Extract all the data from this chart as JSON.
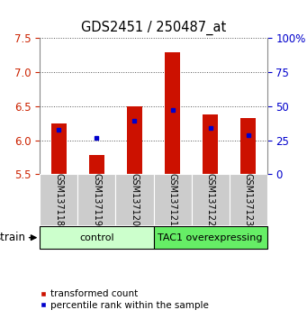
{
  "title": "GDS2451 / 250487_at",
  "samples": [
    "GSM137118",
    "GSM137119",
    "GSM137120",
    "GSM137121",
    "GSM137122",
    "GSM137123"
  ],
  "red_values": [
    6.25,
    5.78,
    6.5,
    7.3,
    6.38,
    6.32
  ],
  "blue_values": [
    6.15,
    6.03,
    6.28,
    6.45,
    6.18,
    6.08
  ],
  "ymin": 5.5,
  "ymax": 7.5,
  "yticks": [
    5.5,
    6.0,
    6.5,
    7.0,
    7.5
  ],
  "right_yticks": [
    0,
    25,
    50,
    75,
    100
  ],
  "right_yticklabels": [
    "0",
    "25",
    "50",
    "75",
    "100%"
  ],
  "groups": [
    {
      "label": "control",
      "indices": [
        0,
        1,
        2
      ],
      "color": "#ccffcc"
    },
    {
      "label": "TAC1 overexpressing",
      "indices": [
        3,
        4,
        5
      ],
      "color": "#66ee66"
    }
  ],
  "bar_color": "#cc1100",
  "blue_color": "#0000cc",
  "bar_bottom": 5.5,
  "legend_red": "transformed count",
  "legend_blue": "percentile rank within the sample",
  "left_tick_color": "#cc2200",
  "right_tick_color": "#0000cc",
  "sample_box_color": "#cccccc",
  "bar_width": 0.4
}
